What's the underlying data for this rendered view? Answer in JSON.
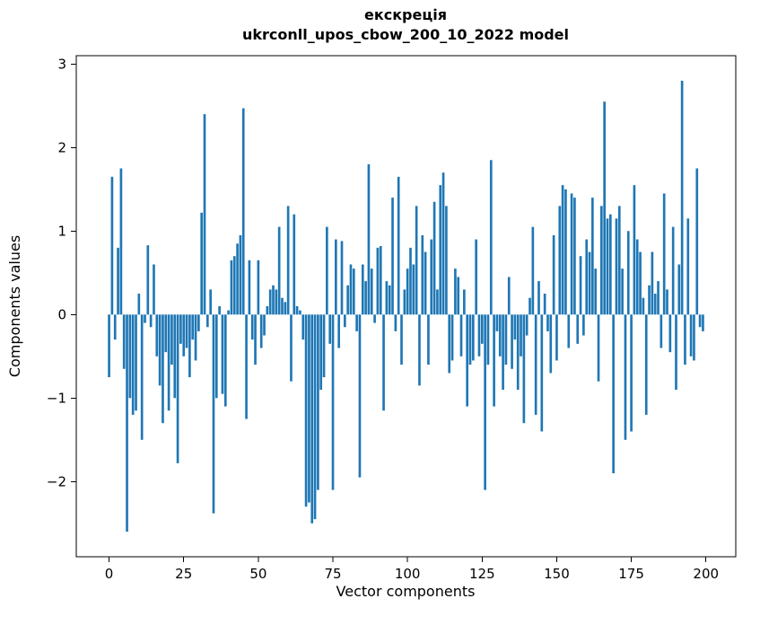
{
  "figure": {
    "title_line1": "екскреція",
    "title_line2": "ukrconll_upos_cbow_200_10_2022 model",
    "xlabel": "Vector components",
    "ylabel": "Components values"
  },
  "chart_data": {
    "type": "bar",
    "title": "екскреція",
    "subtitle": "ukrconll_upos_cbow_200_10_2022 model",
    "xlabel": "Vector components",
    "ylabel": "Components values",
    "bar_color": "#1f77b4",
    "grid": false,
    "legend": "none",
    "x_ticks": [
      0,
      25,
      50,
      75,
      100,
      125,
      150,
      175,
      200
    ],
    "y_ticks": [
      -2,
      -1,
      0,
      1,
      2,
      3
    ],
    "xlim": [
      -11,
      210
    ],
    "ylim": [
      -2.9,
      3.1
    ],
    "x_start": 0,
    "values": [
      -0.75,
      1.65,
      -0.3,
      0.8,
      1.75,
      -0.65,
      -2.6,
      -1.0,
      -1.2,
      -1.15,
      0.25,
      -1.5,
      -0.1,
      0.83,
      -0.15,
      0.6,
      -0.5,
      -0.85,
      -1.3,
      -0.45,
      -1.15,
      -0.6,
      -1.0,
      -1.78,
      -0.35,
      -0.5,
      -0.4,
      -0.75,
      -0.3,
      -0.55,
      -0.2,
      1.22,
      2.4,
      -0.15,
      0.3,
      -2.38,
      -1.0,
      0.1,
      -0.95,
      -1.1,
      0.05,
      0.65,
      0.7,
      0.85,
      0.95,
      2.47,
      -1.25,
      0.65,
      -0.3,
      -0.6,
      0.65,
      -0.4,
      -0.25,
      0.1,
      0.3,
      0.35,
      0.3,
      1.05,
      0.2,
      0.15,
      1.3,
      -0.8,
      1.2,
      0.1,
      0.05,
      -0.3,
      -2.3,
      -2.25,
      -2.5,
      -2.45,
      -2.1,
      -0.9,
      -0.75,
      1.05,
      -0.35,
      -2.1,
      0.9,
      -0.4,
      0.88,
      -0.15,
      0.35,
      0.6,
      0.55,
      -0.2,
      -1.95,
      0.6,
      0.4,
      1.8,
      0.55,
      -0.1,
      0.8,
      0.82,
      -1.15,
      0.4,
      0.35,
      1.4,
      -0.2,
      1.65,
      -0.6,
      0.3,
      0.55,
      0.8,
      0.6,
      1.3,
      -0.85,
      0.95,
      0.75,
      -0.6,
      0.9,
      1.35,
      0.3,
      1.55,
      1.7,
      1.3,
      -0.7,
      -0.55,
      0.55,
      0.45,
      -0.5,
      0.3,
      -1.1,
      -0.6,
      -0.55,
      0.9,
      -0.5,
      -0.35,
      -2.1,
      -0.6,
      1.85,
      -1.1,
      -0.2,
      -0.5,
      -0.9,
      -0.6,
      0.45,
      -0.65,
      -0.3,
      -0.9,
      -0.5,
      -1.3,
      -0.25,
      0.2,
      1.05,
      -1.2,
      0.4,
      -1.4,
      0.25,
      -0.2,
      -0.7,
      0.95,
      -0.55,
      1.3,
      1.55,
      1.5,
      -0.4,
      1.45,
      1.4,
      -0.35,
      0.7,
      -0.25,
      0.9,
      0.75,
      1.4,
      0.55,
      -0.8,
      1.3,
      2.55,
      1.15,
      1.2,
      -1.9,
      1.15,
      1.3,
      0.55,
      -1.5,
      1.0,
      -1.4,
      1.55,
      0.9,
      0.75,
      0.2,
      -1.2,
      0.35,
      0.75,
      0.25,
      0.4,
      -0.4,
      1.45,
      0.3,
      -0.45,
      1.05,
      -0.9,
      0.6,
      2.8,
      -0.6,
      1.15,
      -0.5,
      -0.55,
      1.75,
      -0.15,
      -0.2
    ]
  }
}
